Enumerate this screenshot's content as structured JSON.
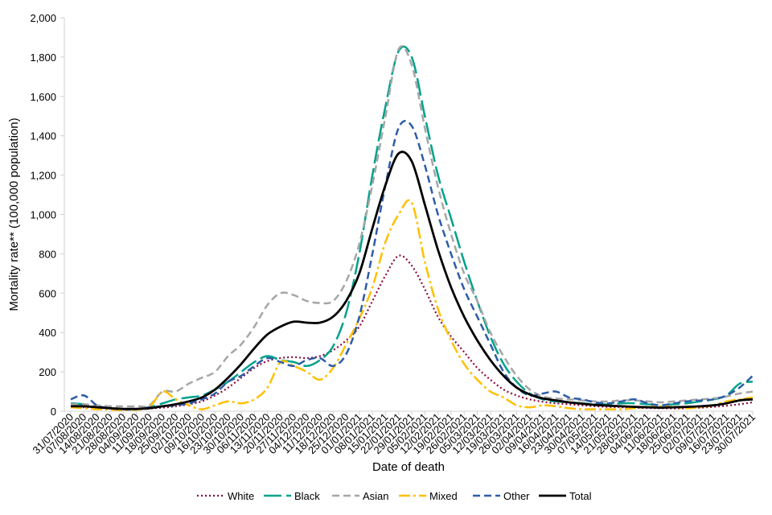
{
  "chart_data": {
    "type": "line",
    "title": "",
    "xlabel": "Date of death",
    "ylabel": "Mortality rate** (100,000 population)",
    "ylim": [
      0,
      2000
    ],
    "yticks": [
      0,
      200,
      400,
      600,
      800,
      1000,
      1200,
      1400,
      1600,
      1800,
      2000
    ],
    "ytick_labels": [
      "0",
      "200",
      "400",
      "600",
      "800",
      "1,000",
      "1,200",
      "1,400",
      "1,600",
      "1,800",
      "2,000"
    ],
    "grid": false,
    "legend_position": "bottom",
    "x": [
      "31/07/2020",
      "07/08/2020",
      "14/08/2020",
      "21/08/2020",
      "28/08/2020",
      "04/09/2020",
      "11/09/2020",
      "18/09/2020",
      "25/09/2020",
      "02/10/2020",
      "09/10/2020",
      "16/10/2020",
      "23/10/2020",
      "30/10/2020",
      "06/11/2020",
      "13/11/2020",
      "20/11/2020",
      "27/11/2020",
      "04/12/2020",
      "11/12/2020",
      "18/12/2020",
      "25/12/2020",
      "01/01/2021",
      "08/01/2021",
      "15/01/2021",
      "22/01/2021",
      "29/01/2021",
      "05/02/2021",
      "12/02/2021",
      "19/02/2021",
      "26/02/2021",
      "05/03/2021",
      "12/03/2021",
      "19/03/2021",
      "26/03/2021",
      "02/04/2021",
      "09/04/2021",
      "16/04/2021",
      "23/04/2021",
      "30/04/2021",
      "07/05/2021",
      "14/05/2021",
      "21/05/2021",
      "28/05/2021",
      "04/06/2021",
      "11/06/2021",
      "18/06/2021",
      "25/06/2021",
      "02/07/2021",
      "09/07/2021",
      "16/07/2021",
      "23/07/2021",
      "30/07/2021"
    ],
    "series": [
      {
        "name": "White",
        "color": "#8B0A3C",
        "dash": "dotted",
        "values": [
          20,
          20,
          18,
          15,
          12,
          12,
          14,
          18,
          25,
          35,
          50,
          80,
          120,
          170,
          220,
          255,
          270,
          275,
          270,
          280,
          310,
          360,
          430,
          560,
          690,
          790,
          740,
          620,
          480,
          380,
          300,
          220,
          160,
          110,
          80,
          60,
          48,
          40,
          35,
          30,
          25,
          22,
          20,
          18,
          16,
          15,
          14,
          15,
          18,
          22,
          28,
          35,
          45
        ]
      },
      {
        "name": "Black",
        "color": "#00A28A",
        "dash": "longdash",
        "values": [
          40,
          35,
          20,
          15,
          10,
          10,
          20,
          40,
          60,
          70,
          80,
          110,
          150,
          200,
          250,
          280,
          260,
          250,
          230,
          260,
          330,
          500,
          800,
          1200,
          1550,
          1830,
          1800,
          1500,
          1200,
          980,
          760,
          560,
          380,
          240,
          150,
          90,
          60,
          50,
          45,
          40,
          35,
          35,
          40,
          40,
          35,
          30,
          35,
          40,
          50,
          60,
          80,
          140,
          150
        ]
      },
      {
        "name": "Asian",
        "color": "#A6A6A6",
        "dash": "dashed",
        "values": [
          35,
          35,
          30,
          25,
          25,
          25,
          30,
          100,
          100,
          140,
          170,
          200,
          280,
          340,
          430,
          540,
          600,
          590,
          560,
          550,
          560,
          660,
          850,
          1150,
          1500,
          1840,
          1760,
          1440,
          1140,
          900,
          700,
          560,
          400,
          280,
          180,
          110,
          75,
          65,
          60,
          55,
          50,
          50,
          55,
          55,
          50,
          45,
          50,
          55,
          60,
          65,
          75,
          90,
          100
        ]
      },
      {
        "name": "Mixed",
        "color": "#FFC000",
        "dash": "dashdot",
        "values": [
          20,
          15,
          10,
          8,
          5,
          8,
          20,
          100,
          60,
          30,
          10,
          30,
          50,
          40,
          60,
          120,
          250,
          230,
          200,
          160,
          220,
          340,
          470,
          630,
          860,
          1000,
          1060,
          760,
          520,
          360,
          240,
          160,
          100,
          70,
          30,
          20,
          30,
          25,
          15,
          10,
          10,
          10,
          10,
          15,
          20,
          25,
          20,
          15,
          20,
          30,
          50,
          60,
          70
        ]
      },
      {
        "name": "Other",
        "color": "#2E5CA8",
        "dash": "dashed",
        "values": [
          60,
          80,
          30,
          15,
          10,
          10,
          20,
          25,
          30,
          40,
          60,
          90,
          150,
          180,
          230,
          270,
          250,
          230,
          260,
          270,
          230,
          290,
          480,
          800,
          1150,
          1440,
          1450,
          1250,
          1000,
          800,
          620,
          480,
          340,
          200,
          120,
          80,
          90,
          100,
          70,
          60,
          45,
          40,
          50,
          60,
          40,
          30,
          40,
          50,
          55,
          60,
          80,
          120,
          180
        ]
      },
      {
        "name": "Total",
        "color": "#000000",
        "dash": "solid",
        "values": [
          25,
          25,
          20,
          15,
          12,
          12,
          15,
          25,
          35,
          50,
          70,
          110,
          170,
          240,
          320,
          390,
          430,
          455,
          450,
          450,
          480,
          560,
          700,
          930,
          1150,
          1310,
          1270,
          1050,
          820,
          630,
          480,
          360,
          260,
          180,
          120,
          85,
          65,
          55,
          45,
          38,
          32,
          28,
          25,
          22,
          20,
          18,
          20,
          22,
          25,
          30,
          40,
          55,
          60
        ]
      }
    ]
  }
}
